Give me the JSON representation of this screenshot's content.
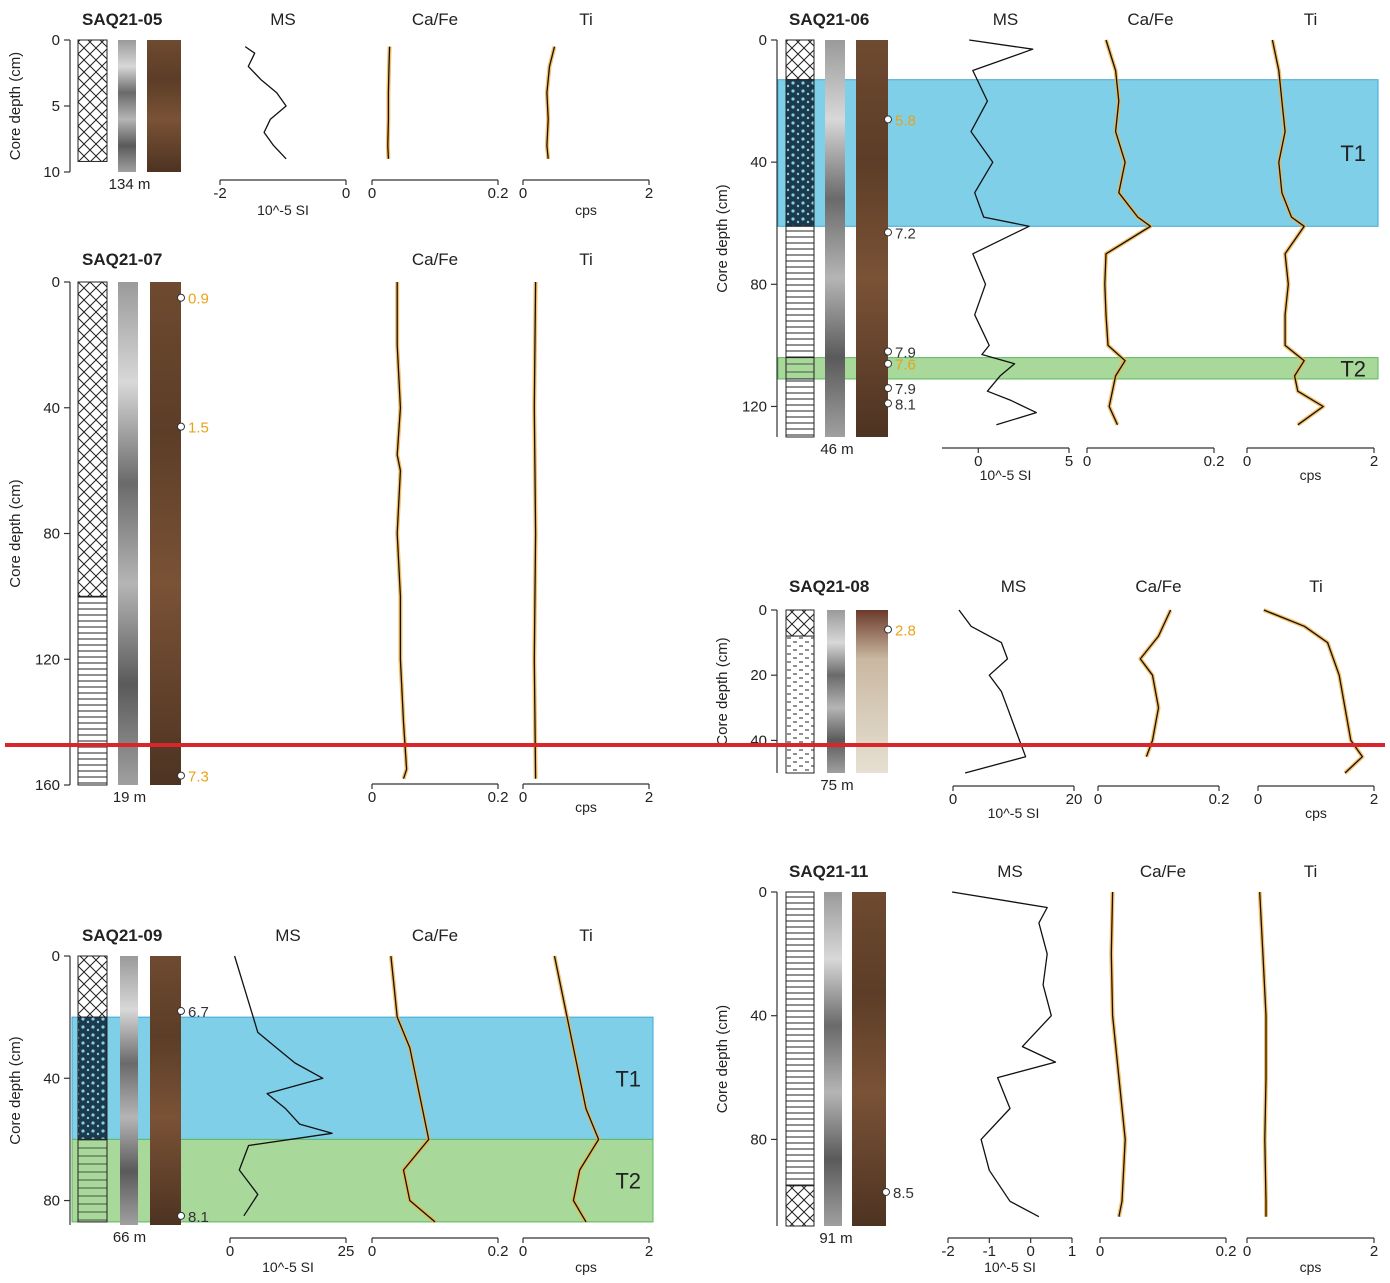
{
  "chart_data": {
    "type": "line",
    "description_free": true,
    "column_titles": {
      "ms": "MS",
      "cafe": "Ca/Fe",
      "ti": "Ti"
    },
    "y_axis_label": "Core depth (cm)",
    "units": {
      "ms": "10^-5 SI",
      "ti": "cps"
    },
    "cores": [
      {
        "id": "SAQ21-05",
        "water_depth": "134 m",
        "ylim": [
          0,
          10
        ],
        "yticks": [
          0,
          5,
          10
        ],
        "ms": {
          "xlim": [
            -2,
            0
          ],
          "xticks": [
            "-2",
            "0"
          ],
          "depth": [
            0.5,
            1,
            2,
            3,
            4,
            5,
            6,
            7,
            8,
            9
          ],
          "values": [
            -1.6,
            -1.45,
            -1.55,
            -1.35,
            -1.1,
            -0.95,
            -1.2,
            -1.3,
            -1.15,
            -0.95
          ]
        },
        "cafe": {
          "xlim": [
            0,
            0.2
          ],
          "xticks": [
            "0",
            "0.2"
          ],
          "depth": [
            0.5,
            2,
            4,
            6,
            8,
            9
          ],
          "values": [
            0.028,
            0.027,
            0.026,
            0.026,
            0.025,
            0.026
          ]
        },
        "ti": {
          "xlim": [
            0,
            2
          ],
          "xticks": [
            "0",
            "2"
          ],
          "depth": [
            0.5,
            2,
            4,
            6,
            8,
            9
          ],
          "values": [
            0.5,
            0.42,
            0.38,
            0.4,
            0.38,
            0.4
          ]
        },
        "ages": [],
        "event_layers": [],
        "lithology": [
          {
            "from": 0,
            "to": 9.2,
            "type": "crosshatch"
          }
        ]
      },
      {
        "id": "SAQ21-06",
        "water_depth": "46 m",
        "ylim": [
          0,
          130
        ],
        "yticks": [
          0,
          40,
          80,
          120
        ],
        "ms": {
          "xlim": [
            -2,
            5
          ],
          "xticks": [
            "0",
            "5"
          ],
          "depth": [
            0,
            3,
            10,
            20,
            30,
            40,
            50,
            58,
            61,
            70,
            80,
            90,
            100,
            103,
            106,
            110,
            115,
            118,
            122,
            126
          ],
          "values": [
            -0.5,
            3.0,
            -0.3,
            0.5,
            -0.4,
            0.8,
            -0.2,
            0.3,
            2.8,
            -0.3,
            0.4,
            -0.2,
            0.6,
            0.2,
            2.0,
            1.2,
            0.5,
            1.8,
            3.2,
            1.0
          ]
        },
        "cafe": {
          "xlim": [
            0,
            0.2
          ],
          "xticks": [
            "0",
            "0.2"
          ],
          "depth": [
            0,
            10,
            20,
            30,
            40,
            50,
            58,
            61,
            70,
            80,
            90,
            100,
            105,
            110,
            120,
            126
          ],
          "values": [
            0.03,
            0.045,
            0.05,
            0.045,
            0.06,
            0.05,
            0.08,
            0.1,
            0.03,
            0.028,
            0.03,
            0.033,
            0.06,
            0.045,
            0.035,
            0.048
          ]
        },
        "ti": {
          "xlim": [
            0,
            2
          ],
          "xticks": [
            "0",
            "2"
          ],
          "depth": [
            0,
            10,
            20,
            30,
            40,
            50,
            58,
            61,
            70,
            80,
            90,
            100,
            105,
            110,
            115,
            120,
            126
          ],
          "values": [
            0.4,
            0.5,
            0.55,
            0.6,
            0.5,
            0.55,
            0.7,
            0.9,
            0.6,
            0.65,
            0.6,
            0.6,
            0.9,
            0.75,
            0.8,
            1.2,
            0.8
          ]
        },
        "ages": [
          {
            "depth": 26,
            "label": "5.8",
            "highlight": true
          },
          {
            "depth": 63,
            "label": "7.2",
            "highlight": false
          },
          {
            "depth": 102,
            "label": "7.9",
            "highlight": false
          },
          {
            "depth": 106,
            "label": "7.6",
            "highlight": true
          },
          {
            "depth": 114,
            "label": "7.9",
            "highlight": false
          },
          {
            "depth": 119,
            "label": "8.1",
            "highlight": false
          }
        ],
        "event_layers": [
          {
            "name": "T1",
            "from": 13,
            "to": 61,
            "color": "#7fcfe9"
          },
          {
            "name": "T2",
            "from": 104,
            "to": 111,
            "color": "#a8d89a"
          }
        ],
        "lithology": [
          {
            "from": 0,
            "to": 13,
            "type": "crosshatch"
          },
          {
            "from": 13,
            "to": 61,
            "type": "tsunami"
          },
          {
            "from": 61,
            "to": 104,
            "type": "laminated"
          },
          {
            "from": 104,
            "to": 111,
            "type": "sand"
          },
          {
            "from": 111,
            "to": 130,
            "type": "laminated"
          }
        ]
      },
      {
        "id": "SAQ21-07",
        "water_depth": "19 m",
        "ylim": [
          0,
          160
        ],
        "yticks": [
          0,
          40,
          80,
          120,
          160
        ],
        "ms": null,
        "cafe": {
          "xlim": [
            0,
            0.2
          ],
          "xticks": [
            "0",
            "0.2"
          ],
          "depth": [
            0,
            20,
            40,
            55,
            60,
            80,
            100,
            120,
            140,
            155,
            158
          ],
          "values": [
            0.04,
            0.04,
            0.045,
            0.04,
            0.045,
            0.04,
            0.045,
            0.045,
            0.05,
            0.055,
            0.05
          ]
        },
        "ti": {
          "xlim": [
            0,
            2
          ],
          "xticks": [
            "0",
            "2"
          ],
          "depth": [
            0,
            40,
            80,
            120,
            158
          ],
          "values": [
            0.2,
            0.18,
            0.2,
            0.18,
            0.2
          ]
        },
        "ages": [
          {
            "depth": 5,
            "label": "0.9",
            "highlight": true
          },
          {
            "depth": 46,
            "label": "1.5",
            "highlight": true
          },
          {
            "depth": 157,
            "label": "7.3",
            "highlight": true
          }
        ],
        "event_layers": [],
        "lithology": [
          {
            "from": 0,
            "to": 100,
            "type": "crosshatch"
          },
          {
            "from": 100,
            "to": 160,
            "type": "laminated"
          }
        ]
      },
      {
        "id": "SAQ21-08",
        "water_depth": "75 m",
        "ylim": [
          0,
          50
        ],
        "yticks": [
          0,
          20,
          40
        ],
        "ms": {
          "xlim": [
            0,
            20
          ],
          "xticks": [
            "0",
            "20"
          ],
          "depth": [
            0,
            5,
            10,
            15,
            20,
            25,
            30,
            35,
            40,
            45,
            50
          ],
          "values": [
            1,
            3,
            8,
            9,
            6,
            8,
            9,
            10,
            11,
            12,
            2
          ]
        },
        "cafe": {
          "xlim": [
            0,
            0.2
          ],
          "xticks": [
            "0",
            "0.2"
          ],
          "depth": [
            0,
            8,
            15,
            20,
            30,
            40,
            45
          ],
          "values": [
            0.12,
            0.1,
            0.07,
            0.09,
            0.1,
            0.09,
            0.08
          ]
        },
        "ti": {
          "xlim": [
            0,
            2
          ],
          "xticks": [
            "0",
            "2"
          ],
          "depth": [
            0,
            5,
            10,
            20,
            30,
            40,
            45,
            50
          ],
          "values": [
            0.1,
            0.8,
            1.2,
            1.4,
            1.5,
            1.6,
            1.8,
            1.5
          ]
        },
        "ages": [
          {
            "depth": 6,
            "label": "2.8",
            "highlight": true
          }
        ],
        "event_layers": [],
        "lithology": [
          {
            "from": 0,
            "to": 8,
            "type": "crosshatch"
          },
          {
            "from": 8,
            "to": 50,
            "type": "silt"
          }
        ]
      },
      {
        "id": "SAQ21-09",
        "water_depth": "66 m",
        "ylim": [
          0,
          88
        ],
        "yticks": [
          0,
          40,
          80
        ],
        "ms": {
          "xlim": [
            0,
            25
          ],
          "xticks": [
            "0",
            "25"
          ],
          "depth": [
            0,
            10,
            20,
            25,
            30,
            35,
            40,
            45,
            50,
            55,
            58,
            62,
            70,
            78,
            85
          ],
          "values": [
            1,
            3,
            5,
            6,
            10,
            14,
            20,
            8,
            12,
            15,
            22,
            4,
            2,
            6,
            3
          ]
        },
        "cafe": {
          "xlim": [
            0,
            0.2
          ],
          "xticks": [
            "0",
            "0.2"
          ],
          "depth": [
            0,
            10,
            20,
            30,
            40,
            50,
            60,
            70,
            80,
            87
          ],
          "values": [
            0.03,
            0.035,
            0.04,
            0.06,
            0.07,
            0.08,
            0.09,
            0.05,
            0.06,
            0.1
          ]
        },
        "ti": {
          "xlim": [
            0,
            2
          ],
          "xticks": [
            "0",
            "2"
          ],
          "depth": [
            0,
            10,
            20,
            30,
            40,
            50,
            60,
            70,
            80,
            87
          ],
          "values": [
            0.5,
            0.6,
            0.7,
            0.8,
            0.9,
            1.0,
            1.2,
            0.9,
            0.8,
            1.0
          ]
        },
        "ages": [
          {
            "depth": 18,
            "label": "6.7",
            "highlight": false
          },
          {
            "depth": 85,
            "label": "8.1",
            "highlight": false
          }
        ],
        "event_layers": [
          {
            "name": "T1",
            "from": 20,
            "to": 60,
            "color": "#7fcfe9"
          },
          {
            "name": "T2",
            "from": 60,
            "to": 87,
            "color": "#a8d89a"
          }
        ],
        "lithology": [
          {
            "from": 0,
            "to": 20,
            "type": "crosshatch"
          },
          {
            "from": 20,
            "to": 60,
            "type": "tsunami"
          },
          {
            "from": 60,
            "to": 87,
            "type": "sand"
          }
        ]
      },
      {
        "id": "SAQ21-11",
        "water_depth": "91 m",
        "ylim": [
          0,
          108
        ],
        "yticks": [
          0,
          40,
          80
        ],
        "ms": {
          "xlim": [
            -2,
            1
          ],
          "xticks": [
            "-2",
            "-1",
            "0",
            "1"
          ],
          "depth": [
            0,
            5,
            10,
            20,
            30,
            40,
            50,
            55,
            60,
            70,
            80,
            90,
            100,
            105
          ],
          "values": [
            -1.9,
            0.4,
            0.2,
            0.4,
            0.3,
            0.5,
            -0.2,
            0.6,
            -0.8,
            -0.5,
            -1.2,
            -1.0,
            -0.5,
            0.2
          ]
        },
        "cafe": {
          "xlim": [
            0,
            0.2
          ],
          "xticks": [
            "0",
            "0.2"
          ],
          "depth": [
            0,
            20,
            40,
            60,
            80,
            100,
            105
          ],
          "values": [
            0.02,
            0.018,
            0.02,
            0.03,
            0.04,
            0.035,
            0.03
          ]
        },
        "ti": {
          "xlim": [
            0,
            2
          ],
          "xticks": [
            "0",
            "2"
          ],
          "depth": [
            0,
            20,
            40,
            60,
            80,
            100,
            105
          ],
          "values": [
            0.2,
            0.25,
            0.3,
            0.3,
            0.28,
            0.3,
            0.3
          ]
        },
        "ages": [
          {
            "depth": 97,
            "label": "8.5",
            "highlight": false
          }
        ],
        "event_layers": [],
        "lithology": [
          {
            "from": 0,
            "to": 95,
            "type": "laminated"
          },
          {
            "from": 95,
            "to": 108,
            "type": "crosshatch"
          }
        ]
      }
    ],
    "reference_line": {
      "color": "#d9262c"
    }
  }
}
